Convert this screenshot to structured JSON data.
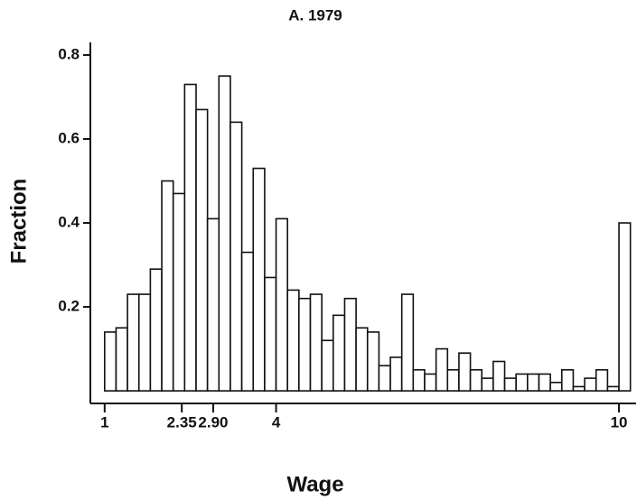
{
  "chart_data": {
    "type": "histogram",
    "title": "A. 1979",
    "x_label": "Wage",
    "y_label": "Fraction",
    "bins": [
      1.0,
      1.2,
      1.4,
      1.6,
      1.8,
      2.0,
      2.2,
      2.4,
      2.6,
      2.8,
      3.0,
      3.2,
      3.4,
      3.6,
      3.8,
      4.0,
      4.2,
      4.4,
      4.6,
      4.8,
      5.0,
      5.2,
      5.4,
      5.6,
      5.8,
      6.0,
      6.2,
      6.4,
      6.6,
      6.8,
      7.0,
      7.2,
      7.4,
      7.6,
      7.8,
      8.0,
      8.2,
      8.4,
      8.6,
      8.8,
      9.0,
      9.2,
      9.4,
      9.6,
      9.8,
      10.0,
      10.2
    ],
    "values": [
      0.14,
      0.15,
      0.23,
      0.23,
      0.29,
      0.5,
      0.47,
      0.73,
      0.67,
      0.41,
      0.75,
      0.64,
      0.33,
      0.53,
      0.27,
      0.41,
      0.24,
      0.22,
      0.23,
      0.12,
      0.18,
      0.22,
      0.15,
      0.14,
      0.06,
      0.08,
      0.23,
      0.05,
      0.04,
      0.1,
      0.05,
      0.09,
      0.05,
      0.03,
      0.07,
      0.03,
      0.04,
      0.04,
      0.04,
      0.02,
      0.05,
      0.01,
      0.03,
      0.05,
      0.01,
      0.4
    ],
    "color": "#ffffff",
    "xlim": [
      0.75,
      10.3
    ],
    "ylim": [
      -0.03,
      0.83
    ],
    "xticks": [
      1,
      2.35,
      {
        "value": 2.9,
        "label": "2.90"
      },
      4,
      10
    ],
    "yticks": [
      0.2,
      0.4,
      0.6,
      0.8
    ]
  }
}
